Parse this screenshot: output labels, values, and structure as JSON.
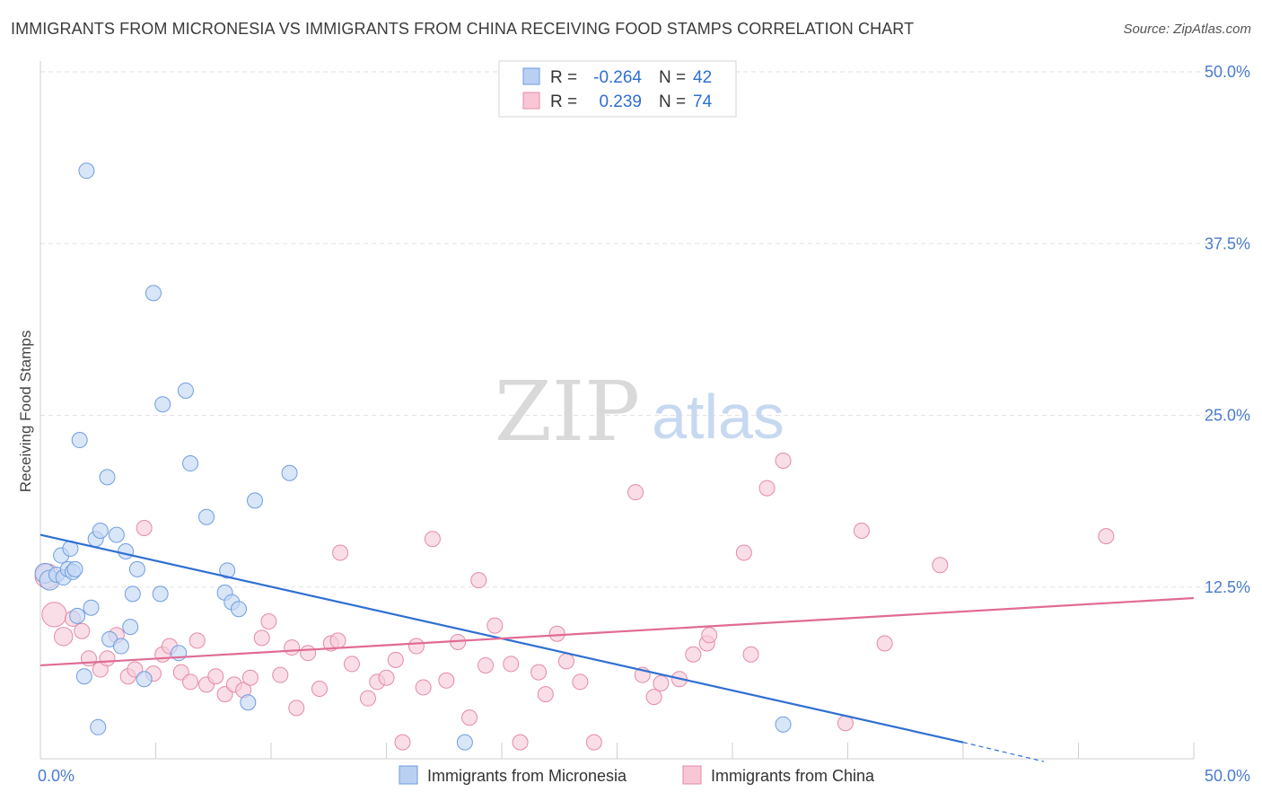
{
  "title": "IMMIGRANTS FROM MICRONESIA VS IMMIGRANTS FROM CHINA RECEIVING FOOD STAMPS CORRELATION CHART",
  "source": "Source: ZipAtlas.com",
  "watermark": {
    "zip": "ZIP",
    "atlas": "atlas"
  },
  "legend": {
    "r_label": "R =",
    "n_label": "N =",
    "entries": [
      {
        "r": "-0.264",
        "n": "42",
        "fill": "#b9d0f3",
        "stroke": "#6b9be0"
      },
      {
        "r": "0.239",
        "n": "74",
        "fill": "#f8c6d5",
        "stroke": "#e889a7"
      }
    ]
  },
  "colors": {
    "micronesia_fill": "#c5d8f5",
    "micronesia_stroke": "#6f9de0",
    "micronesia_line": "#2f6fd3",
    "china_fill": "#f8cdda",
    "china_stroke": "#e48aa6",
    "china_line": "#e06b93",
    "tick_label": "#4a7cc9"
  },
  "chart_data": {
    "type": "scatter",
    "title": "IMMIGRANTS FROM MICRONESIA VS IMMIGRANTS FROM CHINA RECEIVING FOOD STAMPS CORRELATION CHART",
    "xlabel": "",
    "ylabel": "Receiving Food Stamps",
    "xlim": [
      0,
      50
    ],
    "ylim": [
      0,
      50
    ],
    "x_tick_labels": [
      "0.0%",
      "50.0%"
    ],
    "y_ticks": [
      12.5,
      25.0,
      37.5,
      50.0
    ],
    "y_tick_labels": [
      "12.5%",
      "25.0%",
      "37.5%",
      "50.0%"
    ],
    "grid": true,
    "legend_position": "top-center",
    "series": [
      {
        "name": "Immigrants from Micronesia",
        "r": -0.264,
        "n": 42,
        "trend": {
          "x": [
            0,
            40
          ],
          "y": [
            16.3,
            1.2
          ],
          "dashed_to": [
            43.5,
            -0.2
          ]
        },
        "points": [
          {
            "x": 0.2,
            "y": 13.5,
            "s": 1.3
          },
          {
            "x": 0.4,
            "y": 13.0,
            "s": 1.3
          },
          {
            "x": 0.7,
            "y": 13.4,
            "s": 1.0
          },
          {
            "x": 0.9,
            "y": 14.8,
            "s": 1.0
          },
          {
            "x": 1.0,
            "y": 13.2,
            "s": 1.0
          },
          {
            "x": 1.2,
            "y": 13.8,
            "s": 1.0
          },
          {
            "x": 1.3,
            "y": 15.3,
            "s": 1.0
          },
          {
            "x": 1.4,
            "y": 13.6,
            "s": 1.0
          },
          {
            "x": 1.5,
            "y": 13.8,
            "s": 1.0
          },
          {
            "x": 1.6,
            "y": 10.4,
            "s": 1.0
          },
          {
            "x": 1.7,
            "y": 23.2,
            "s": 1.0
          },
          {
            "x": 1.9,
            "y": 6.0,
            "s": 1.0
          },
          {
            "x": 2.0,
            "y": 42.8,
            "s": 1.0
          },
          {
            "x": 2.2,
            "y": 11.0,
            "s": 1.0
          },
          {
            "x": 2.4,
            "y": 16.0,
            "s": 1.0
          },
          {
            "x": 2.5,
            "y": 2.3,
            "s": 1.0
          },
          {
            "x": 2.6,
            "y": 16.6,
            "s": 1.0
          },
          {
            "x": 2.9,
            "y": 20.5,
            "s": 1.0
          },
          {
            "x": 3.0,
            "y": 8.7,
            "s": 1.0
          },
          {
            "x": 3.3,
            "y": 16.3,
            "s": 1.0
          },
          {
            "x": 3.5,
            "y": 8.2,
            "s": 1.0
          },
          {
            "x": 3.7,
            "y": 15.1,
            "s": 1.0
          },
          {
            "x": 3.9,
            "y": 9.6,
            "s": 1.0
          },
          {
            "x": 4.0,
            "y": 12.0,
            "s": 1.0
          },
          {
            "x": 4.2,
            "y": 13.8,
            "s": 1.0
          },
          {
            "x": 4.5,
            "y": 5.8,
            "s": 1.0
          },
          {
            "x": 4.9,
            "y": 33.9,
            "s": 1.0
          },
          {
            "x": 5.2,
            "y": 12.0,
            "s": 1.0
          },
          {
            "x": 5.3,
            "y": 25.8,
            "s": 1.0
          },
          {
            "x": 6.0,
            "y": 7.7,
            "s": 1.0
          },
          {
            "x": 6.3,
            "y": 26.8,
            "s": 1.0
          },
          {
            "x": 6.5,
            "y": 21.5,
            "s": 1.0
          },
          {
            "x": 7.2,
            "y": 17.6,
            "s": 1.0
          },
          {
            "x": 8.0,
            "y": 12.1,
            "s": 1.0
          },
          {
            "x": 8.1,
            "y": 13.7,
            "s": 1.0
          },
          {
            "x": 8.3,
            "y": 11.4,
            "s": 1.0
          },
          {
            "x": 8.6,
            "y": 10.9,
            "s": 1.0
          },
          {
            "x": 9.0,
            "y": 4.1,
            "s": 1.0
          },
          {
            "x": 9.3,
            "y": 18.8,
            "s": 1.0
          },
          {
            "x": 10.8,
            "y": 20.8,
            "s": 1.0
          },
          {
            "x": 18.4,
            "y": 1.2,
            "s": 1.0
          },
          {
            "x": 32.2,
            "y": 2.5,
            "s": 1.0
          }
        ]
      },
      {
        "name": "Immigrants from China",
        "r": 0.239,
        "n": 74,
        "trend": {
          "x": [
            0,
            50
          ],
          "y": [
            6.8,
            11.7
          ]
        },
        "points": [
          {
            "x": 0.3,
            "y": 13.3,
            "s": 1.6
          },
          {
            "x": 0.6,
            "y": 10.5,
            "s": 1.6
          },
          {
            "x": 1.0,
            "y": 8.9,
            "s": 1.2
          },
          {
            "x": 1.4,
            "y": 10.2,
            "s": 1.0
          },
          {
            "x": 1.8,
            "y": 9.3,
            "s": 1.0
          },
          {
            "x": 2.1,
            "y": 7.3,
            "s": 1.0
          },
          {
            "x": 2.6,
            "y": 6.5,
            "s": 1.0
          },
          {
            "x": 2.9,
            "y": 7.3,
            "s": 1.0
          },
          {
            "x": 3.3,
            "y": 9.0,
            "s": 1.0
          },
          {
            "x": 3.8,
            "y": 6.0,
            "s": 1.0
          },
          {
            "x": 4.1,
            "y": 6.5,
            "s": 1.0
          },
          {
            "x": 4.5,
            "y": 16.8,
            "s": 1.0
          },
          {
            "x": 4.9,
            "y": 6.2,
            "s": 1.0
          },
          {
            "x": 5.3,
            "y": 7.6,
            "s": 1.0
          },
          {
            "x": 5.6,
            "y": 8.2,
            "s": 1.0
          },
          {
            "x": 6.1,
            "y": 6.3,
            "s": 1.0
          },
          {
            "x": 6.5,
            "y": 5.6,
            "s": 1.0
          },
          {
            "x": 6.8,
            "y": 8.6,
            "s": 1.0
          },
          {
            "x": 7.2,
            "y": 5.4,
            "s": 1.0
          },
          {
            "x": 7.6,
            "y": 6.0,
            "s": 1.0
          },
          {
            "x": 8.0,
            "y": 4.7,
            "s": 1.0
          },
          {
            "x": 8.4,
            "y": 5.4,
            "s": 1.0
          },
          {
            "x": 8.8,
            "y": 5.0,
            "s": 1.0
          },
          {
            "x": 9.1,
            "y": 5.9,
            "s": 1.0
          },
          {
            "x": 9.6,
            "y": 8.8,
            "s": 1.0
          },
          {
            "x": 9.9,
            "y": 10.0,
            "s": 1.0
          },
          {
            "x": 10.4,
            "y": 6.1,
            "s": 1.0
          },
          {
            "x": 10.9,
            "y": 8.1,
            "s": 1.0
          },
          {
            "x": 11.1,
            "y": 3.7,
            "s": 1.0
          },
          {
            "x": 11.6,
            "y": 7.7,
            "s": 1.0
          },
          {
            "x": 12.1,
            "y": 5.1,
            "s": 1.0
          },
          {
            "x": 12.6,
            "y": 8.4,
            "s": 1.0
          },
          {
            "x": 12.9,
            "y": 8.6,
            "s": 1.0
          },
          {
            "x": 13.0,
            "y": 15.0,
            "s": 1.0
          },
          {
            "x": 13.5,
            "y": 6.9,
            "s": 1.0
          },
          {
            "x": 14.2,
            "y": 4.4,
            "s": 1.0
          },
          {
            "x": 14.6,
            "y": 5.6,
            "s": 1.0
          },
          {
            "x": 15.0,
            "y": 5.9,
            "s": 1.0
          },
          {
            "x": 15.4,
            "y": 7.2,
            "s": 1.0
          },
          {
            "x": 15.7,
            "y": 1.2,
            "s": 1.0
          },
          {
            "x": 16.3,
            "y": 8.2,
            "s": 1.0
          },
          {
            "x": 16.6,
            "y": 5.2,
            "s": 1.0
          },
          {
            "x": 17.0,
            "y": 16.0,
            "s": 1.0
          },
          {
            "x": 17.6,
            "y": 5.7,
            "s": 1.0
          },
          {
            "x": 18.1,
            "y": 8.5,
            "s": 1.0
          },
          {
            "x": 18.6,
            "y": 3.0,
            "s": 1.0
          },
          {
            "x": 19.0,
            "y": 13.0,
            "s": 1.0
          },
          {
            "x": 19.3,
            "y": 6.8,
            "s": 1.0
          },
          {
            "x": 19.7,
            "y": 9.7,
            "s": 1.0
          },
          {
            "x": 20.4,
            "y": 6.9,
            "s": 1.0
          },
          {
            "x": 20.8,
            "y": 1.2,
            "s": 1.0
          },
          {
            "x": 21.6,
            "y": 6.3,
            "s": 1.0
          },
          {
            "x": 21.9,
            "y": 4.7,
            "s": 1.0
          },
          {
            "x": 22.4,
            "y": 9.1,
            "s": 1.0
          },
          {
            "x": 22.8,
            "y": 7.1,
            "s": 1.0
          },
          {
            "x": 23.4,
            "y": 5.6,
            "s": 1.0
          },
          {
            "x": 24.0,
            "y": 1.2,
            "s": 1.0
          },
          {
            "x": 25.8,
            "y": 19.4,
            "s": 1.0
          },
          {
            "x": 26.1,
            "y": 6.1,
            "s": 1.0
          },
          {
            "x": 26.6,
            "y": 4.5,
            "s": 1.0
          },
          {
            "x": 26.9,
            "y": 5.5,
            "s": 1.0
          },
          {
            "x": 27.7,
            "y": 5.8,
            "s": 1.0
          },
          {
            "x": 28.3,
            "y": 7.6,
            "s": 1.0
          },
          {
            "x": 28.9,
            "y": 8.4,
            "s": 1.0
          },
          {
            "x": 29.0,
            "y": 9.0,
            "s": 1.0
          },
          {
            "x": 30.5,
            "y": 15.0,
            "s": 1.0
          },
          {
            "x": 30.8,
            "y": 7.6,
            "s": 1.0
          },
          {
            "x": 31.5,
            "y": 19.7,
            "s": 1.0
          },
          {
            "x": 32.2,
            "y": 21.7,
            "s": 1.0
          },
          {
            "x": 34.9,
            "y": 2.6,
            "s": 1.0
          },
          {
            "x": 35.6,
            "y": 16.6,
            "s": 1.0
          },
          {
            "x": 36.6,
            "y": 8.4,
            "s": 1.0
          },
          {
            "x": 39.0,
            "y": 14.1,
            "s": 1.0
          },
          {
            "x": 46.2,
            "y": 16.2,
            "s": 1.0
          }
        ]
      }
    ]
  }
}
